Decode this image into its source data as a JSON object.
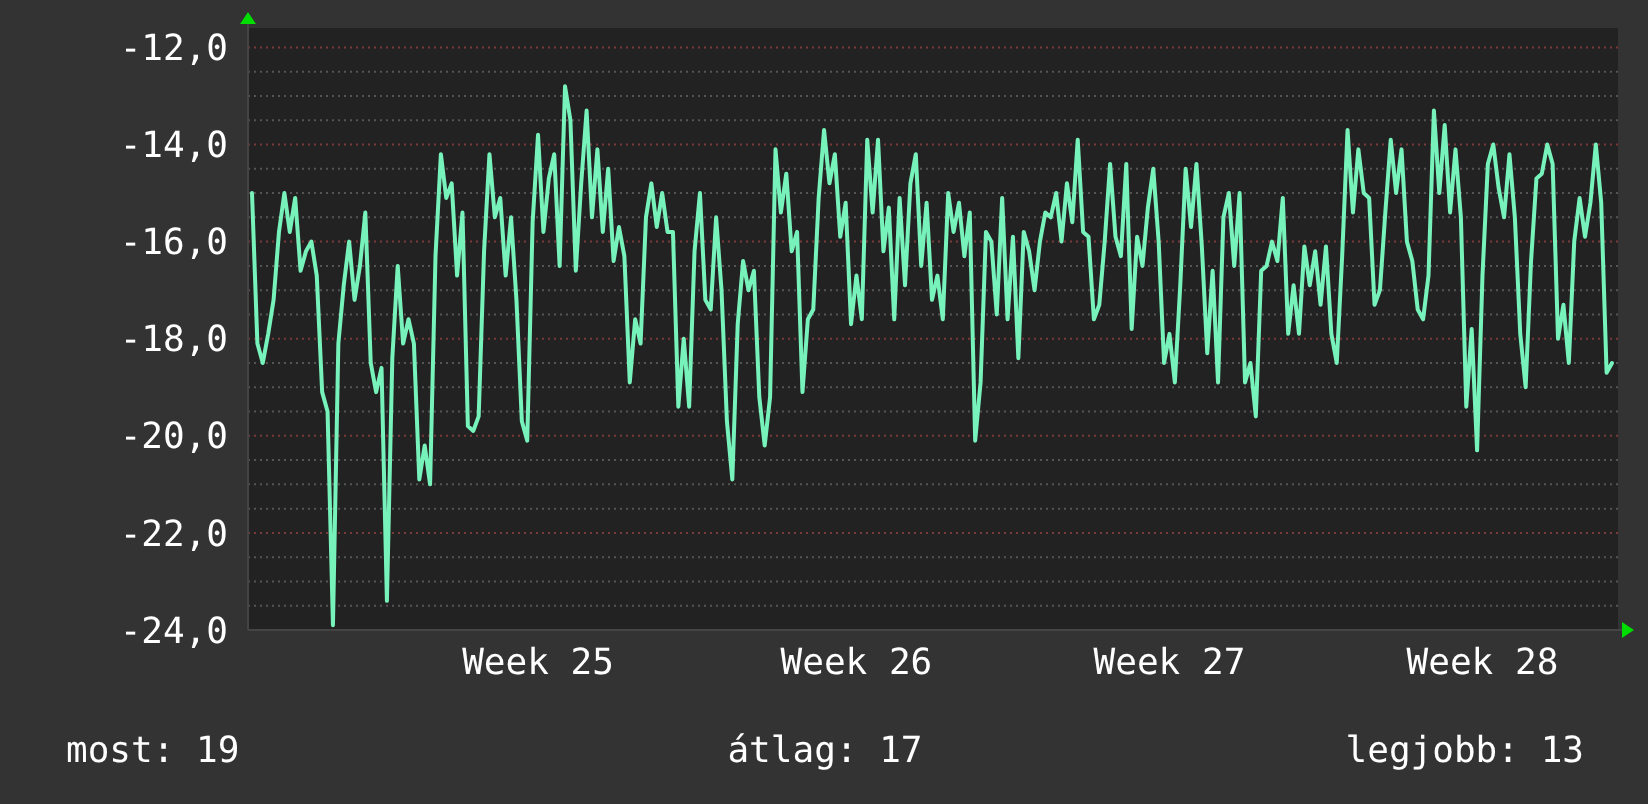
{
  "chart_data": {
    "type": "line",
    "color": "#77f2bb",
    "grid": "y",
    "ylim": [
      -24,
      -11.6
    ],
    "categories": [
      null,
      null,
      null,
      null,
      null,
      null,
      null,
      null,
      null,
      null,
      null,
      null,
      null,
      null,
      null,
      null,
      null,
      null,
      null,
      null,
      null,
      null,
      null,
      null,
      null,
      null,
      null,
      null,
      null,
      null,
      null,
      null,
      null,
      null,
      null,
      null,
      null,
      null,
      null,
      null,
      null,
      null,
      null,
      null,
      null,
      null,
      null,
      null,
      null,
      null,
      null,
      null,
      null,
      "Week 25",
      null,
      null,
      null,
      null,
      null,
      null,
      null,
      null,
      null,
      null,
      null,
      null,
      null,
      null,
      null,
      null,
      null,
      null,
      null,
      null,
      null,
      null,
      null,
      null,
      null,
      null,
      null,
      null,
      null,
      null,
      null,
      null,
      null,
      null,
      null,
      null,
      null,
      null,
      null,
      null,
      null,
      null,
      null,
      null,
      null,
      null,
      null,
      null,
      null,
      null,
      null,
      null,
      null,
      null,
      null,
      null,
      null,
      null,
      "Week 26",
      null,
      null,
      null,
      null,
      null,
      null,
      null,
      null,
      null,
      null,
      null,
      null,
      null,
      null,
      null,
      null,
      null,
      null,
      null,
      null,
      null,
      null,
      null,
      null,
      null,
      null,
      null,
      null,
      null,
      null,
      null,
      null,
      null,
      null,
      null,
      null,
      null,
      null,
      null,
      null,
      null,
      null,
      null,
      null,
      null,
      null,
      null,
      null,
      null,
      null,
      null,
      null,
      null,
      null,
      null,
      null,
      null,
      "Week 27",
      null,
      null,
      null,
      null,
      null,
      null,
      null,
      null,
      null,
      null,
      null,
      null,
      null,
      null,
      null,
      null,
      null,
      null,
      null,
      null,
      null,
      null,
      null,
      null,
      null,
      null,
      null,
      null,
      null,
      null,
      null,
      null,
      null,
      null,
      null,
      null,
      null,
      null,
      null,
      null,
      null,
      null,
      null,
      null,
      null,
      null,
      null,
      null,
      null,
      null,
      null,
      null,
      null,
      null,
      null,
      null,
      null,
      "Week 28",
      null,
      null,
      null,
      null,
      null,
      null,
      null,
      null,
      null,
      null,
      null,
      null,
      null,
      null,
      null,
      null,
      null,
      null,
      null,
      null,
      null,
      null,
      null,
      null
    ],
    "yticks": [
      {
        "value": -24,
        "label": "-24,0"
      },
      {
        "value": -22,
        "label": "-22,0"
      },
      {
        "value": -20,
        "label": "-20,0"
      },
      {
        "value": -18,
        "label": "-18,0"
      },
      {
        "value": -16,
        "label": "-16,0"
      },
      {
        "value": -14,
        "label": "-14,0"
      },
      {
        "value": -12,
        "label": "-12,0"
      },
      {
        "value": -23.5,
        "label": null
      },
      {
        "value": -23,
        "label": null
      },
      {
        "value": -22.5,
        "label": null
      },
      {
        "value": -21.5,
        "label": null
      },
      {
        "value": -21,
        "label": null
      },
      {
        "value": -20.5,
        "label": null
      },
      {
        "value": -19.5,
        "label": null
      },
      {
        "value": -19,
        "label": null
      },
      {
        "value": -18.5,
        "label": null
      },
      {
        "value": -17.5,
        "label": null
      },
      {
        "value": -17,
        "label": null
      },
      {
        "value": -16.5,
        "label": null
      },
      {
        "value": -15.5,
        "label": null
      },
      {
        "value": -15,
        "label": null
      },
      {
        "value": -14.5,
        "label": null
      },
      {
        "value": -13.5,
        "label": null
      },
      {
        "value": -13,
        "label": null
      },
      {
        "value": -12.5,
        "label": null
      }
    ],
    "values": [
      -15.0,
      -18.1,
      -18.5,
      -17.9,
      -17.2,
      -15.8,
      -15.0,
      -15.8,
      -15.1,
      -16.6,
      -16.2,
      -16.0,
      -16.7,
      -19.1,
      -19.5,
      -23.9,
      -18.1,
      -16.9,
      -16.0,
      -17.2,
      -16.5,
      -15.4,
      -18.5,
      -19.1,
      -18.6,
      -23.4,
      -18.4,
      -16.5,
      -18.1,
      -17.6,
      -18.1,
      -20.9,
      -20.2,
      -21.0,
      -16.3,
      -14.2,
      -15.1,
      -14.8,
      -16.7,
      -15.4,
      -19.8,
      -19.9,
      -19.6,
      -16.2,
      -14.2,
      -15.5,
      -15.1,
      -16.7,
      -15.5,
      -17.2,
      -19.7,
      -20.1,
      -15.6,
      -13.8,
      -15.8,
      -14.7,
      -14.2,
      -16.5,
      -12.8,
      -13.5,
      -16.6,
      -14.8,
      -13.3,
      -15.5,
      -14.1,
      -15.8,
      -14.5,
      -16.4,
      -15.7,
      -16.3,
      -18.9,
      -17.6,
      -18.1,
      -15.5,
      -14.8,
      -15.7,
      -15.0,
      -15.8,
      -15.8,
      -19.4,
      -18.0,
      -19.4,
      -16.2,
      -15.0,
      -17.2,
      -17.4,
      -15.5,
      -17.0,
      -19.7,
      -20.9,
      -17.7,
      -16.4,
      -17.0,
      -16.6,
      -19.2,
      -20.2,
      -19.2,
      -14.1,
      -15.4,
      -14.6,
      -16.2,
      -15.8,
      -19.1,
      -17.6,
      -17.4,
      -15.1,
      -13.7,
      -14.8,
      -14.2,
      -15.9,
      -15.2,
      -17.7,
      -16.7,
      -17.6,
      -13.9,
      -15.4,
      -13.9,
      -16.2,
      -15.3,
      -17.6,
      -15.1,
      -16.9,
      -14.8,
      -14.2,
      -16.5,
      -15.2,
      -17.2,
      -16.7,
      -17.6,
      -15.0,
      -15.8,
      -15.2,
      -16.3,
      -15.4,
      -20.1,
      -18.9,
      -15.8,
      -16.0,
      -17.5,
      -15.1,
      -17.6,
      -15.9,
      -18.4,
      -15.8,
      -16.2,
      -17.0,
      -16.0,
      -15.4,
      -15.5,
      -15.0,
      -16.0,
      -14.8,
      -15.6,
      -13.9,
      -15.8,
      -15.9,
      -17.6,
      -17.3,
      -16.0,
      -14.4,
      -15.9,
      -16.3,
      -14.4,
      -17.8,
      -15.9,
      -16.5,
      -15.3,
      -14.5,
      -16.0,
      -18.5,
      -17.9,
      -18.9,
      -16.9,
      -14.5,
      -15.7,
      -14.4,
      -16.1,
      -18.3,
      -16.6,
      -18.9,
      -15.5,
      -15.0,
      -16.5,
      -15.0,
      -18.9,
      -18.5,
      -19.6,
      -16.6,
      -16.5,
      -16.0,
      -16.4,
      -15.1,
      -17.9,
      -16.9,
      -17.9,
      -16.1,
      -16.9,
      -16.2,
      -17.3,
      -16.1,
      -17.9,
      -18.5,
      -16.3,
      -13.7,
      -15.4,
      -14.1,
      -15.0,
      -15.1,
      -17.3,
      -17.0,
      -15.4,
      -13.9,
      -15.0,
      -14.1,
      -16.0,
      -16.4,
      -17.4,
      -17.6,
      -16.7,
      -13.3,
      -15.0,
      -13.6,
      -15.4,
      -14.1,
      -15.5,
      -19.4,
      -17.8,
      -20.3,
      -16.7,
      -14.4,
      -14.0,
      -14.9,
      -15.5,
      -14.2,
      -15.5,
      -17.9,
      -19.0,
      -16.4,
      -14.7,
      -14.6,
      -14.0,
      -14.4,
      -18.0,
      -17.3,
      -18.5,
      -16.0,
      -15.1,
      -15.9,
      -15.2,
      -14.0,
      -15.2,
      -18.7,
      -18.5
    ],
    "annotations": [
      "most: 19",
      "átlag: 17",
      "legjobb: 13"
    ]
  }
}
